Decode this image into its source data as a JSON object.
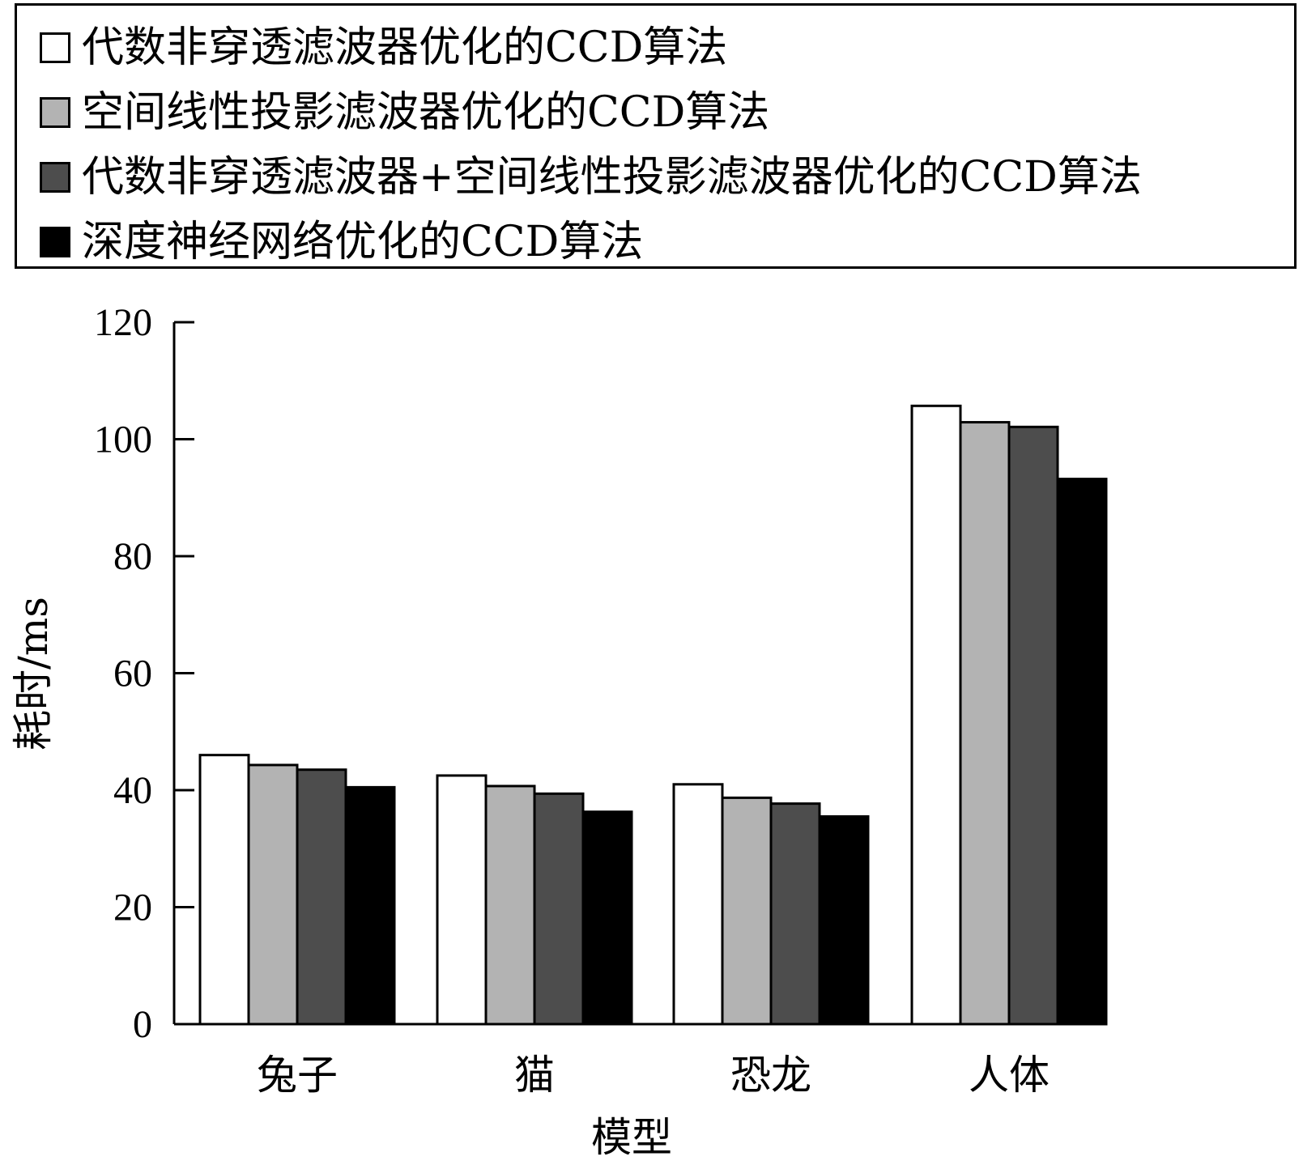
{
  "chart_data": {
    "type": "bar",
    "categories": [
      "兔子",
      "猫",
      "恐龙",
      "人体"
    ],
    "series": [
      {
        "name": "代数非穿透滤波器优化的CCD算法",
        "values": [
          46,
          42.5,
          41,
          105.7
        ],
        "color": "#ffffff"
      },
      {
        "name": "空间线性投影滤波器优化的CCD算法",
        "values": [
          44.3,
          40.7,
          38.7,
          102.9
        ],
        "color": "#b3b3b3"
      },
      {
        "name": "代数非穿透滤波器+空间线性投影滤波器优化的CCD算法",
        "values": [
          43.5,
          39.4,
          37.7,
          102.1
        ],
        "color": "#4d4d4d"
      },
      {
        "name": "深度神经网络优化的CCD算法",
        "values": [
          40.5,
          36.3,
          35.5,
          93.2
        ],
        "color": "#000000"
      }
    ],
    "xlabel": "模型",
    "ylabel": "耗时/ms",
    "ylim": [
      0,
      120
    ],
    "yticks": [
      "0",
      "20",
      "40",
      "60",
      "80",
      "100",
      "120"
    ],
    "legend_position": "top",
    "grid": false
  }
}
